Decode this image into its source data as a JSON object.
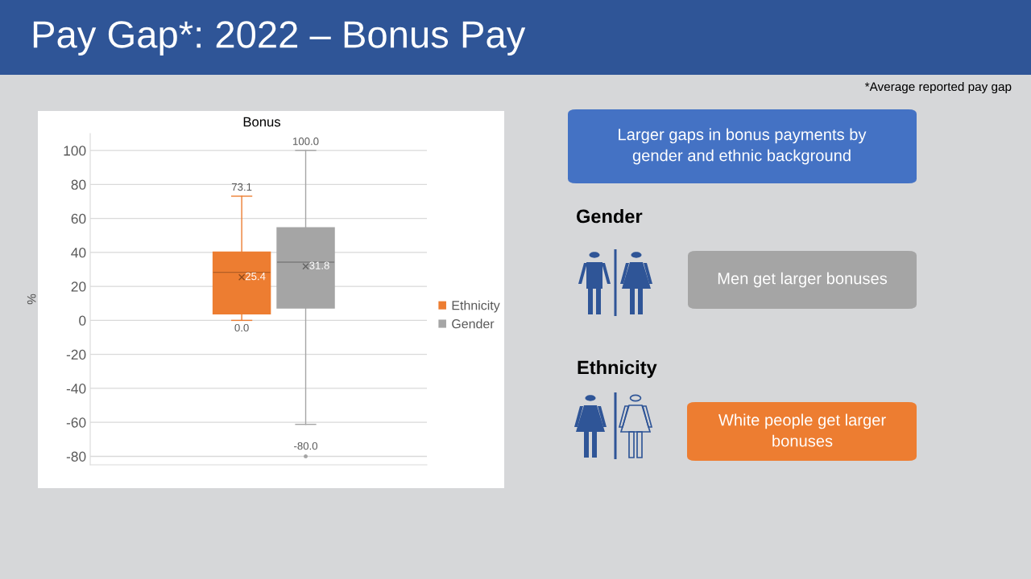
{
  "chart_data": {
    "type": "box",
    "title": "Pay Gap*: 2022 – Bonus Pay",
    "subtitle": "Bonus",
    "ylabel": "%",
    "categories": [
      null
    ],
    "series": [
      {
        "name": "Ethnicity",
        "color": "#ed7d31",
        "boxes": [
          {
            "low": 0.0,
            "q1": 3.8,
            "median": 28.3,
            "q3": 40.2,
            "high": 73.1,
            "mean": 25.4
          }
        ]
      },
      {
        "name": "Gender",
        "color": "#a5a5a5",
        "boxes": [
          {
            "low": -61.2,
            "q1": 7.3,
            "median": 34.3,
            "q3": 54.5,
            "high": 100.0,
            "mean": 31.8,
            "outliers": [
              -80.0
            ]
          }
        ]
      }
    ],
    "ylim": [
      -85,
      110
    ],
    "yticks": [
      -80,
      -60,
      -40,
      -20,
      0,
      20,
      40,
      60,
      80,
      100
    ],
    "grid": "y",
    "legend": "right",
    "tick_labels": "y",
    "annotations": [
      "*Average reported pay gap",
      "Larger gaps in bonus payments by\ngender and ethnic background",
      "Gender",
      "Men get larger bonuses",
      "Ethnicity",
      "White people get larger\nbonuses",
      {
        "text": "73.1",
        "y": 73.1
      },
      {
        "text": "0.0",
        "y": 0.0
      },
      "25.4",
      {
        "text": "100.0",
        "y": 100.0
      },
      "31.8",
      "-80.0"
    ]
  }
}
